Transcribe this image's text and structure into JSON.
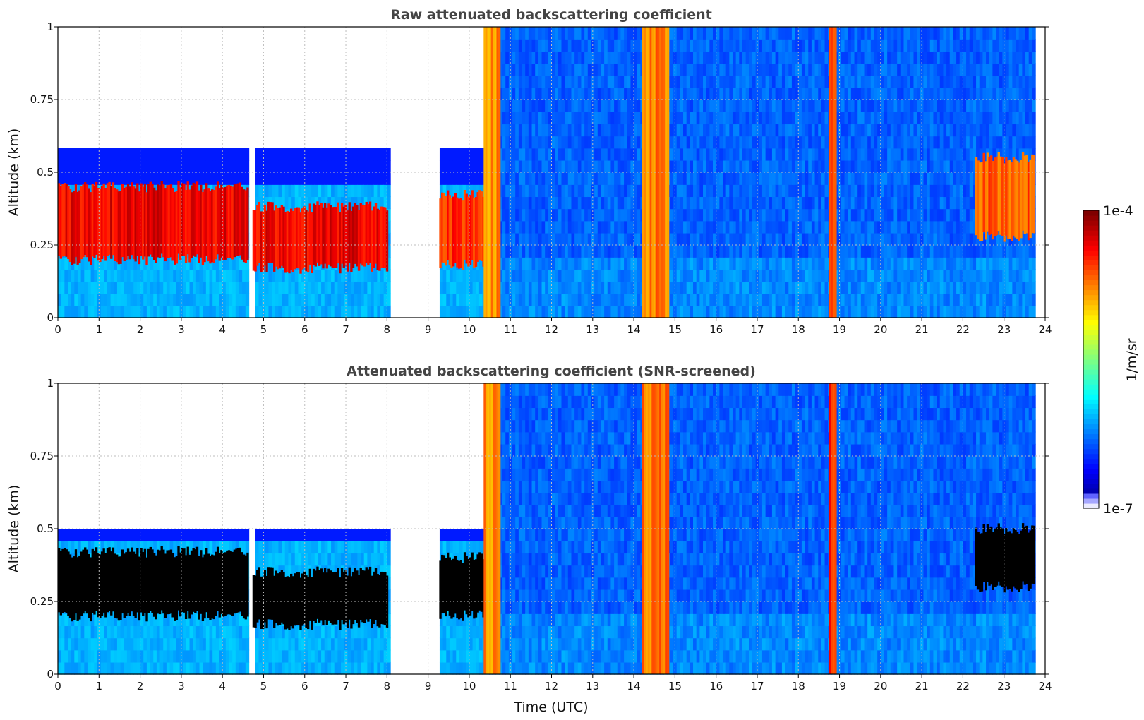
{
  "chart_data": [
    {
      "type": "heatmap",
      "title": "Raw attenuated backscattering coefficient",
      "xlabel": "",
      "ylabel": "Altitude (km)",
      "xlim": [
        0,
        24
      ],
      "ylim": [
        0,
        1
      ],
      "x_ticks": [
        "0",
        "1",
        "2",
        "3",
        "4",
        "5",
        "6",
        "7",
        "8",
        "9",
        "10",
        "11",
        "12",
        "13",
        "14",
        "15",
        "16",
        "17",
        "18",
        "19",
        "20",
        "21",
        "22",
        "23",
        "24"
      ],
      "y_ticks": [
        "0",
        "0.25",
        "0.5",
        "0.75",
        "1"
      ],
      "grid": true,
      "data_gaps_hours": [
        [
          4.63,
          4.73
        ],
        [
          8.02,
          9.27
        ],
        [
          23.75,
          24
        ]
      ],
      "features": [
        {
          "x": [
            0.0,
            4.63
          ],
          "layer_km": [
            0.2,
            0.45
          ],
          "level": 0.95
        },
        {
          "x": [
            4.73,
            8.02
          ],
          "layer_km": [
            0.17,
            0.38
          ],
          "level": 0.95
        },
        {
          "x": [
            9.27,
            10.5
          ],
          "layer_km": [
            0.18,
            0.42
          ],
          "level": 0.9
        },
        {
          "x": [
            10.35,
            10.75
          ],
          "column": true,
          "level": 0.8
        },
        {
          "x": [
            14.2,
            14.85
          ],
          "column": true,
          "level": 0.82
        },
        {
          "x": [
            18.75,
            18.92
          ],
          "column": true,
          "level": 0.9
        },
        {
          "x": [
            22.3,
            23.75
          ],
          "layer_km": [
            0.28,
            0.55
          ],
          "level": 0.85
        }
      ]
    },
    {
      "type": "heatmap",
      "title": "Attenuated backscattering coefficient (SNR-screened)",
      "xlabel": "Time (UTC)",
      "ylabel": "Altitude (km)",
      "xlim": [
        0,
        24
      ],
      "ylim": [
        0,
        1
      ],
      "x_ticks": [
        "0",
        "1",
        "2",
        "3",
        "4",
        "5",
        "6",
        "7",
        "8",
        "9",
        "10",
        "11",
        "12",
        "13",
        "14",
        "15",
        "16",
        "17",
        "18",
        "19",
        "20",
        "21",
        "22",
        "23",
        "24"
      ],
      "y_ticks": [
        "0",
        "0.25",
        "0.5",
        "0.75",
        "1"
      ],
      "grid": true,
      "data_gaps_hours": [
        [
          4.63,
          4.73
        ],
        [
          8.02,
          9.27
        ],
        [
          23.75,
          24
        ]
      ],
      "features": [
        {
          "x": [
            0.0,
            4.63
          ],
          "layer_km": [
            0.2,
            0.42
          ],
          "level": 1.0
        },
        {
          "x": [
            4.73,
            8.02
          ],
          "layer_km": [
            0.17,
            0.35
          ],
          "level": 1.0
        },
        {
          "x": [
            9.27,
            10.5
          ],
          "layer_km": [
            0.2,
            0.4
          ],
          "level": 1.0
        },
        {
          "x": [
            10.35,
            10.75
          ],
          "column": true,
          "level": 0.8
        },
        {
          "x": [
            14.2,
            14.85
          ],
          "column": true,
          "level": 0.82
        },
        {
          "x": [
            18.75,
            18.92
          ],
          "column": true,
          "level": 0.9
        },
        {
          "x": [
            22.3,
            23.75
          ],
          "layer_km": [
            0.3,
            0.5
          ],
          "level": 1.0
        }
      ]
    }
  ],
  "colorbar": {
    "label": "1/m/sr",
    "max_label": "1e-4",
    "min_label": "1e-7",
    "scale": "log",
    "range": [
      1e-07,
      0.0001
    ],
    "colormap": "jet"
  }
}
